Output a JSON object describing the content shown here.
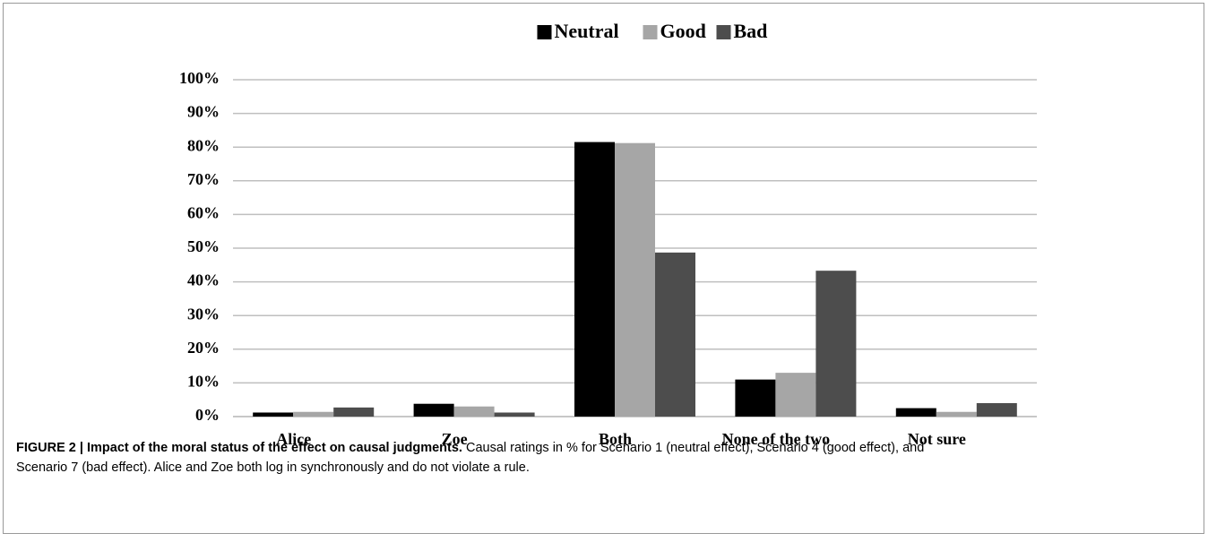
{
  "chart_data": {
    "type": "bar",
    "caption_title": "FIGURE 2 | Impact of the moral status of the effect on causal judgments.",
    "caption_text": [
      "Causal ratings in % for Scenario 1 (neutral effect), Scenario 4 (good effect), and",
      "Scenario 7 (bad effect). Alice and Zoe both log in synchronously and do not violate a rule."
    ],
    "categories": [
      "Alice",
      "Zoe",
      "Both",
      "None of the two",
      "Not sure"
    ],
    "series": [
      {
        "name": "Neutral",
        "color": "#000000",
        "values": [
          1.2,
          3.8,
          81.5,
          11.0,
          2.5
        ]
      },
      {
        "name": "Good",
        "color": "#a6a6a6",
        "values": [
          1.4,
          3.0,
          81.2,
          13.0,
          1.4
        ]
      },
      {
        "name": "Bad",
        "color": "#4d4d4d",
        "values": [
          2.7,
          1.2,
          48.7,
          43.3,
          4.0
        ]
      }
    ],
    "ylim": [
      0,
      100
    ],
    "yticks": [
      {
        "value": 0,
        "label": "0%"
      },
      {
        "value": 10,
        "label": "10%"
      },
      {
        "value": 20,
        "label": "20%"
      },
      {
        "value": 30,
        "label": "30%"
      },
      {
        "value": 40,
        "label": "40%"
      },
      {
        "value": 50,
        "label": "50%"
      },
      {
        "value": 60,
        "label": "60%"
      },
      {
        "value": 70,
        "label": "70%"
      },
      {
        "value": 80,
        "label": "80%"
      },
      {
        "value": 90,
        "label": "90%"
      },
      {
        "value": 100,
        "label": "100%"
      }
    ],
    "grid": true,
    "legend": "top"
  }
}
